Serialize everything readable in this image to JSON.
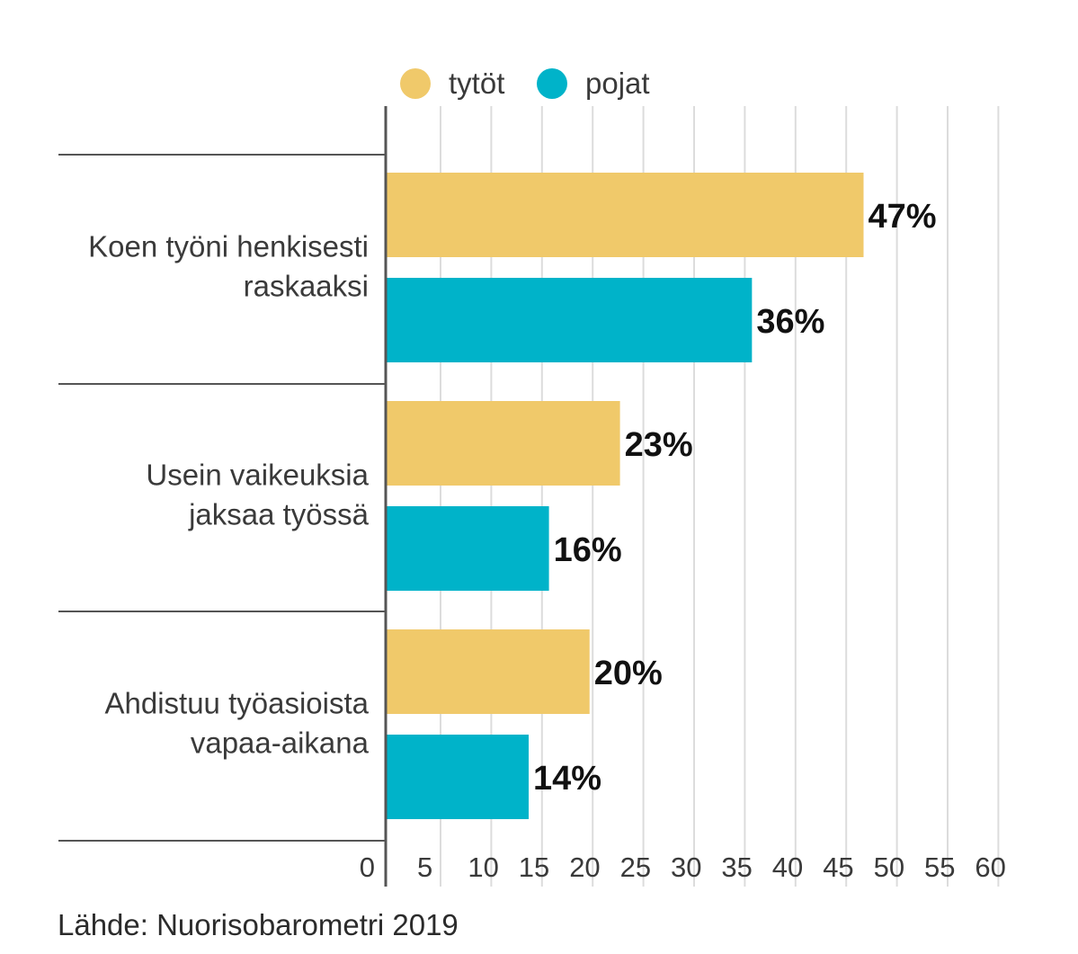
{
  "chart_data": {
    "type": "bar",
    "orientation": "horizontal",
    "categories": [
      [
        "Koen työni henkisesti",
        "raskaaksi"
      ],
      [
        "Usein vaikeuksia",
        "jaksaa työssä"
      ],
      [
        "Ahdistuu työasioista",
        "vapaa-aikana"
      ]
    ],
    "series": [
      {
        "name": "tytöt",
        "color": "#f0c96a",
        "values": [
          47,
          23,
          20
        ],
        "labels": [
          "47%",
          "23%",
          "20%"
        ]
      },
      {
        "name": "pojat",
        "color": "#00b3c9",
        "values": [
          36,
          16,
          14
        ],
        "labels": [
          "36%",
          "16%",
          "14%"
        ]
      }
    ],
    "x_ticks": [
      "0",
      "5",
      "10",
      "15",
      "20",
      "25",
      "30",
      "35",
      "40",
      "45",
      "50",
      "55",
      "60"
    ],
    "xlim": [
      0,
      60
    ],
    "grid": "vertical",
    "legend_position": "top"
  },
  "source": "Lähde: Nuorisobarometri 2019"
}
